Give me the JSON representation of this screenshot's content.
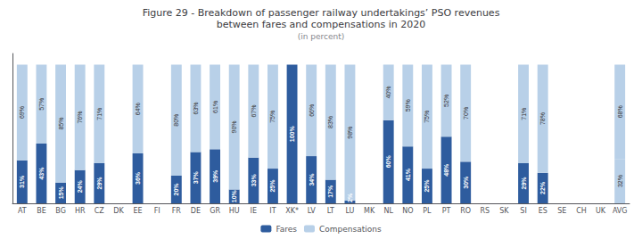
{
  "chart_data": {
    "type": "bar",
    "title": "Figure 29 - Breakdown of passenger railway undertakings’ PSO revenues\nbetween fares and compensations in 2020",
    "subtitle": "(in percent)",
    "categories": [
      "AT",
      "BE",
      "BG",
      "HR",
      "CZ",
      "DK",
      "EE",
      "FI",
      "FR",
      "DE",
      "GR",
      "HU",
      "IE",
      "IT",
      "XK*",
      "LV",
      "LT",
      "LU",
      "MK",
      "NL",
      "NO",
      "PL",
      "PT",
      "RO",
      "RS",
      "SK",
      "SI",
      "ES",
      "SE",
      "CH",
      "UK",
      "AVG"
    ],
    "series": [
      {
        "name": "Fares",
        "color": "#2e5c9e",
        "colors": [
          "#2e5c9e",
          "#2e5c9e",
          "#2e5c9e",
          "#2e5c9e",
          "#2e5c9e",
          "#2e5c9e",
          "#2e5c9e",
          "#2e5c9e",
          "#2e5c9e",
          "#2e5c9e",
          "#2e5c9e",
          "#2e5c9e",
          "#2e5c9e",
          "#2e5c9e",
          "#2e5c9e",
          "#2e5c9e",
          "#2e5c9e",
          "#2e5c9e",
          "#2e5c9e",
          "#2e5c9e",
          "#2e5c9e",
          "#2e5c9e",
          "#2e5c9e",
          "#2e5c9e",
          "#2e5c9e",
          "#2e5c9e",
          "#2e5c9e",
          "#2e5c9e",
          "#2e5c9e",
          "#2e5c9e",
          "#2e5c9e",
          "#b8d0e8"
        ],
        "values": [
          31,
          43,
          15,
          24,
          29,
          null,
          36,
          null,
          20,
          37,
          39,
          10,
          33,
          25,
          100,
          34,
          17,
          2,
          null,
          60,
          41,
          25,
          48,
          30,
          null,
          null,
          29,
          22,
          null,
          null,
          null,
          32
        ],
        "value_labels": [
          "31%",
          "43%",
          "15%",
          "24%",
          "29%",
          null,
          "36%",
          null,
          "20%",
          "37%",
          "39%",
          "10%",
          "33%",
          "25%",
          "100%",
          "34%",
          "17%",
          "2%",
          null,
          "60%",
          "41%",
          "25%",
          "48%",
          "30%",
          null,
          null,
          "29%",
          "22%",
          null,
          null,
          null,
          "32%"
        ]
      },
      {
        "name": "Compensations",
        "color": "#b8d0e8",
        "values": [
          69,
          57,
          85,
          76,
          71,
          null,
          64,
          null,
          80,
          63,
          61,
          90,
          67,
          75,
          0,
          66,
          83,
          98,
          null,
          40,
          59,
          75,
          52,
          70,
          null,
          null,
          71,
          78,
          null,
          null,
          null,
          68
        ],
        "value_labels": [
          "69%",
          "57%",
          "85%",
          "76%",
          "71%",
          null,
          "64%",
          null,
          "80%",
          "63%",
          "61%",
          "90%",
          "67%",
          "75%",
          null,
          "66%",
          "83%",
          "98%",
          null,
          "40%",
          "59%",
          "75%",
          "52%",
          "70%",
          null,
          null,
          "71%",
          "78%",
          null,
          null,
          null,
          "68%"
        ]
      }
    ],
    "stacked": true,
    "data_labels": true,
    "ylim": [
      0,
      108
    ],
    "tick_labels": "x",
    "grid": false,
    "legend": "bottom"
  }
}
